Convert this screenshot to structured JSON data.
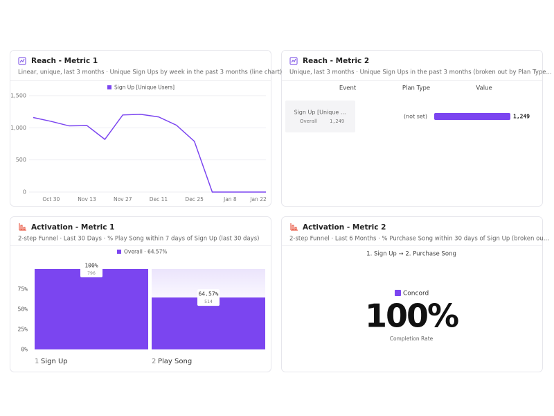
{
  "chart_data": [
    {
      "type": "line",
      "title": "Reach - Metric 1",
      "subtitle": "Linear, unique, last 3 months · Unique Sign Ups by week in the past 3 months (line chart)",
      "x": [
        null,
        "Oct 30",
        null,
        "Nov 13",
        null,
        "Nov 27",
        null,
        "Dec 11",
        null,
        "Dec 25",
        null,
        "Jan 8",
        null,
        "Jan 22"
      ],
      "series": [
        {
          "name": "Sign Up [Unique Users]",
          "color": "#7b45f0",
          "values": [
            1160,
            1100,
            1030,
            1035,
            820,
            1200,
            1210,
            1170,
            1040,
            790,
            0,
            0,
            0,
            0
          ]
        }
      ],
      "ylim": [
        0,
        1500
      ],
      "yticks": [
        0,
        500,
        {
          "value": 1000,
          "label": "1,000"
        },
        {
          "value": 1500,
          "label": "1,500"
        }
      ],
      "grid": true
    },
    {
      "type": "table",
      "title": "Reach - Metric 2",
      "subtitle": "Unique, last 3 months · Unique Sign Ups in the past 3 months (broken out by Plan Type...",
      "columns": [
        "Event",
        "Plan Type",
        "Value"
      ],
      "rows": [
        {
          "event": "Sign Up [Unique ...",
          "event_detail": "Overall",
          "plan_type": "(not set)",
          "value": 1249,
          "value_label": "1,249"
        }
      ],
      "color": "#7b45f0"
    },
    {
      "type": "funnel",
      "title": "Activation - Metric 1",
      "subtitle": "2-step Funnel · Last 30 Days · % Play Song within 7 days of Sign Up (last 30 days)",
      "legend": "Overall · 64.57%",
      "steps": [
        "1",
        "2"
      ],
      "categories": [
        "Sign Up",
        "Play Song"
      ],
      "values": [
        100,
        64.57
      ],
      "value_labels": [
        "100%",
        "64.57%"
      ],
      "counts": [
        796,
        514
      ],
      "color": "#7b45f0",
      "ylim": [
        0,
        100
      ],
      "yticks": [
        {
          "value": 0,
          "label": "0%"
        },
        {
          "value": 25,
          "label": "25%"
        },
        {
          "value": 50,
          "label": "50%"
        },
        {
          "value": 75,
          "label": "75%"
        }
      ]
    },
    {
      "type": "metric",
      "title": "Activation - Metric 2",
      "subtitle": "2-step Funnel · Last 6 Months · % Purchase Song within 30 days of Sign Up (broken ou...",
      "steps_label": "1. Sign Up → 2. Purchase Song",
      "legend": "Concord",
      "color": "#7b45f0",
      "value": "100%",
      "caption": "Completion Rate"
    }
  ]
}
